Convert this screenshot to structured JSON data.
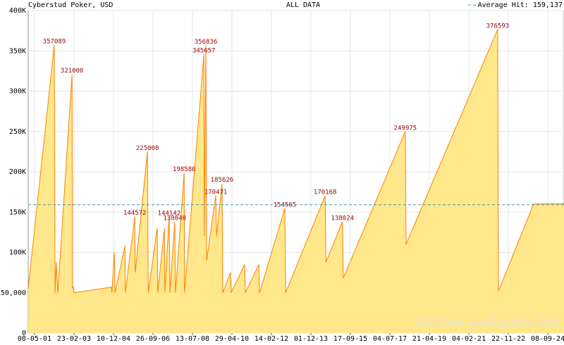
{
  "chart_data": {
    "type": "area",
    "title": "Cyberstud Poker, USD",
    "subtitle": "ALL DATA",
    "watermark": "Online-Jackpots.biz",
    "average": {
      "value": 159137,
      "label": "Average Hit: 159,137"
    },
    "color": "#ff8000",
    "fill": "#ffe78c",
    "average_color": "#3d9ab8",
    "grid": true,
    "x": [
      -0.16,
      0.5,
      0.52,
      0.55,
      0.59,
      0.95,
      0.96,
      0.98,
      1.0,
      1.95,
      1.96,
      2.02,
      2.04,
      2.29,
      2.3,
      2.54,
      2.55,
      2.86,
      2.88,
      3.11,
      3.12,
      3.29,
      3.3,
      3.41,
      3.43,
      3.55,
      3.57,
      3.79,
      3.8,
      4.29,
      4.3,
      4.34,
      4.36,
      4.59,
      4.61,
      4.75,
      4.77,
      4.96,
      4.98,
      5.32,
      5.34,
      5.68,
      5.7,
      6.34,
      6.36,
      7.36,
      7.38,
      7.8,
      7.82,
      9.39,
      9.41,
      11.73,
      11.75,
      12.64,
      13.41
    ],
    "values": [
      55000,
      357089,
      50000,
      88000,
      50000,
      321000,
      55000,
      57000,
      50000,
      57000,
      50000,
      100000,
      50000,
      108000,
      50000,
      144572,
      75000,
      225000,
      50000,
      130000,
      50000,
      130000,
      50000,
      144142,
      50000,
      138040,
      50000,
      198586,
      50000,
      345657,
      120000,
      356836,
      90000,
      170471,
      120000,
      185626,
      50000,
      75000,
      50000,
      85000,
      50000,
      85000,
      50000,
      154565,
      50000,
      170168,
      88000,
      138024,
      68000,
      249975,
      110000,
      376593,
      52000,
      160000,
      160500
    ],
    "value_labels": [
      null,
      "357089",
      null,
      null,
      null,
      "321000",
      null,
      null,
      null,
      null,
      null,
      null,
      null,
      null,
      null,
      "144572",
      null,
      "225000",
      null,
      null,
      null,
      null,
      null,
      "144142",
      null,
      "138040",
      null,
      "198586",
      null,
      "345657",
      null,
      "356836",
      null,
      "170471",
      null,
      "185626",
      null,
      null,
      null,
      null,
      null,
      null,
      null,
      "154565",
      null,
      "170168",
      null,
      "138024",
      null,
      "249975",
      null,
      "376593",
      null,
      null,
      null
    ],
    "xlim": [
      -0.16,
      13.41
    ],
    "xticks": [
      {
        "value": 0,
        "label": "08-05-01"
      },
      {
        "value": 1,
        "label": "23-02-03"
      },
      {
        "value": 2,
        "label": "10-12-04"
      },
      {
        "value": 3,
        "label": "26-09-06"
      },
      {
        "value": 4,
        "label": "13-07-08"
      },
      {
        "value": 5,
        "label": "29-04-10"
      },
      {
        "value": 6,
        "label": "14-02-12"
      },
      {
        "value": 7,
        "label": "01-12-13"
      },
      {
        "value": 8,
        "label": "17-09-15"
      },
      {
        "value": 9,
        "label": "04-07-17"
      },
      {
        "value": 10,
        "label": "21-04-19"
      },
      {
        "value": 11,
        "label": "04-02-21"
      },
      {
        "value": 12,
        "label": "22-11-22"
      },
      {
        "value": 13,
        "label": "08-09-24"
      }
    ],
    "ylim": [
      0,
      400000
    ],
    "yticks": [
      0,
      {
        "value": 50000,
        "label": "50,000"
      },
      {
        "value": 100000,
        "label": "100K"
      },
      {
        "value": 150000,
        "label": "150K"
      },
      {
        "value": 200000,
        "label": "200K"
      },
      {
        "value": 250000,
        "label": "250K"
      },
      {
        "value": 300000,
        "label": "300K"
      },
      {
        "value": 350000,
        "label": "350K"
      },
      {
        "value": 400000,
        "label": "400K"
      }
    ]
  }
}
